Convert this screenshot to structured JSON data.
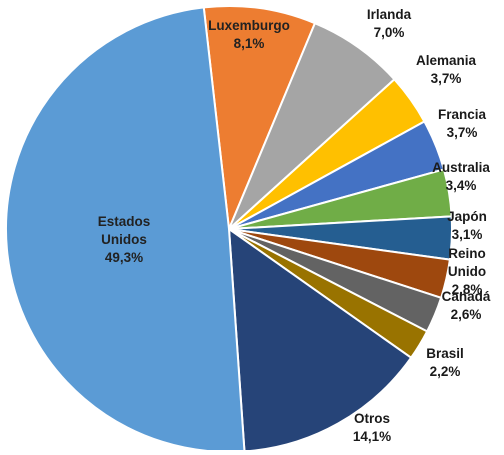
{
  "chart_data": {
    "type": "pie",
    "title": "",
    "start_angle_deg": -6.5,
    "direction": "clockwise",
    "slice_border_color": "#ffffff",
    "slices": [
      {
        "label_lines": [
          "Luxemburgo"
        ],
        "value_label": "8,1%",
        "value": 8.1,
        "color": "#ED7D31",
        "label_position": "inside"
      },
      {
        "label_lines": [
          "Irlanda"
        ],
        "value_label": "7,0%",
        "value": 7.0,
        "color": "#A5A5A5",
        "label_position": "outside"
      },
      {
        "label_lines": [
          "Alemania"
        ],
        "value_label": "3,7%",
        "value": 3.7,
        "color": "#FFC000",
        "label_position": "outside"
      },
      {
        "label_lines": [
          "Francia"
        ],
        "value_label": "3,7%",
        "value": 3.7,
        "color": "#4472C4",
        "label_position": "outside"
      },
      {
        "label_lines": [
          "Australia"
        ],
        "value_label": "3,4%",
        "value": 3.4,
        "color": "#70AD47",
        "label_position": "outside"
      },
      {
        "label_lines": [
          "Japón"
        ],
        "value_label": "3,1%",
        "value": 3.1,
        "color": "#255E91",
        "label_position": "outside"
      },
      {
        "label_lines": [
          "Reino",
          "Unido"
        ],
        "value_label": "2,8%",
        "value": 2.8,
        "color": "#9E480E",
        "label_position": "outside"
      },
      {
        "label_lines": [
          "Canadá"
        ],
        "value_label": "2,6%",
        "value": 2.6,
        "color": "#636363",
        "label_position": "outside"
      },
      {
        "label_lines": [
          "Brasil"
        ],
        "value_label": "2,2%",
        "value": 2.2,
        "color": "#997300",
        "label_position": "outside"
      },
      {
        "label_lines": [
          "Otros"
        ],
        "value_label": "14,1%",
        "value": 14.1,
        "color": "#264478",
        "label_position": "outside"
      },
      {
        "label_lines": [
          "Estados",
          "Unidos"
        ],
        "value_label": "49,3%",
        "value": 49.3,
        "color": "#5B9BD5",
        "label_position": "inside"
      }
    ]
  }
}
